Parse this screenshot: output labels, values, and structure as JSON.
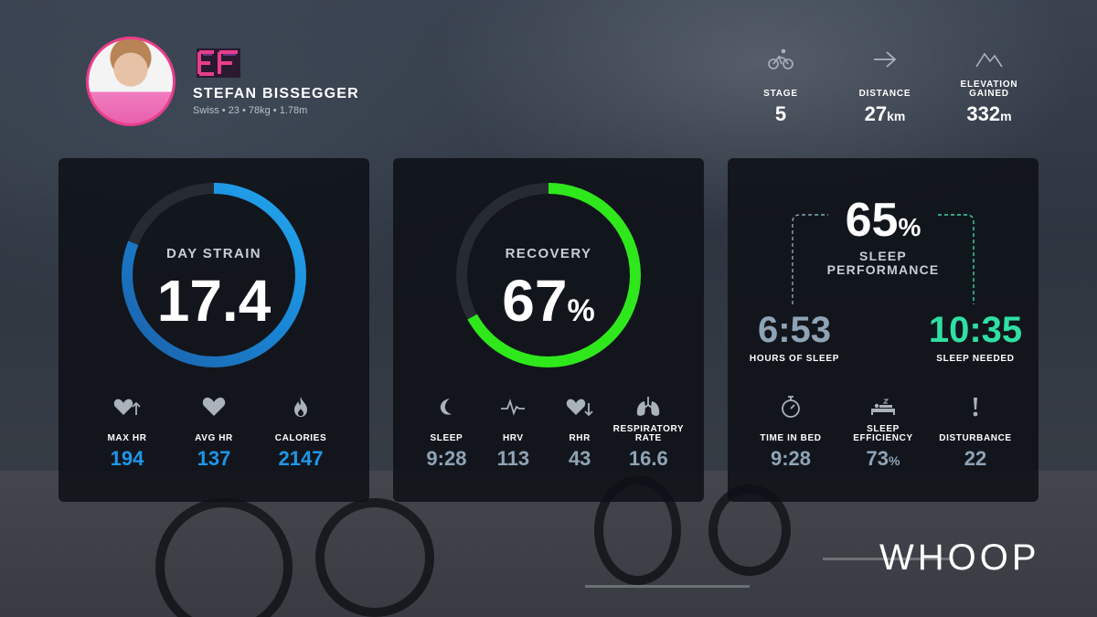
{
  "athlete": {
    "name": "STEFAN BISSEGGER",
    "info": "Swiss • 23 • 78kg • 1.78m"
  },
  "stage_stats": [
    {
      "icon": "cyclist-icon",
      "label": "STAGE",
      "value": "5",
      "unit": ""
    },
    {
      "icon": "arrow-right-icon",
      "label": "DISTANCE",
      "value": "27",
      "unit": "km"
    },
    {
      "icon": "mountain-icon",
      "label": "ELEVATION GAINED",
      "value": "332",
      "unit": "m"
    }
  ],
  "strain": {
    "title": "DAY STRAIN",
    "value": "17.4",
    "fraction": 0.81,
    "stats": [
      {
        "icon": "heart-up-icon",
        "label": "MAX HR",
        "value": "194"
      },
      {
        "icon": "heart-icon",
        "label": "AVG HR",
        "value": "137"
      },
      {
        "icon": "flame-icon",
        "label": "CALORIES",
        "value": "2147"
      }
    ]
  },
  "recovery": {
    "title": "RECOVERY",
    "value": "67",
    "unit": "%",
    "fraction": 0.67,
    "stats": [
      {
        "icon": "moon-icon",
        "label": "SLEEP",
        "value": "9:28"
      },
      {
        "icon": "hrv-icon",
        "label": "HRV",
        "value": "113"
      },
      {
        "icon": "heart-down-icon",
        "label": "RHR",
        "value": "43"
      },
      {
        "icon": "lungs-icon",
        "label": "RESPIRATORY RATE",
        "value": "16.6"
      }
    ]
  },
  "sleep": {
    "performance_value": "65",
    "performance_unit": "%",
    "performance_label": "SLEEP PERFORMANCE",
    "hours_value": "6:53",
    "hours_label": "HOURS OF SLEEP",
    "needed_value": "10:35",
    "needed_label": "SLEEP NEEDED",
    "stats": [
      {
        "icon": "stopwatch-icon",
        "label": "TIME IN BED",
        "value": "9:28",
        "unit": ""
      },
      {
        "icon": "bed-icon",
        "label": "SLEEP EFFICIENCY",
        "value": "73",
        "unit": "%"
      },
      {
        "icon": "exclamation-icon",
        "label": "DISTURBANCE",
        "value": "22",
        "unit": ""
      }
    ]
  },
  "brand": "WHOOP",
  "colors": {
    "strain_blue": "#1f96e8",
    "recovery_green": "#2ee81c",
    "sleep_grey": "#8fa3b6",
    "sleep_needed_green": "#2fe0a2",
    "profile_pink": "#e83e8c"
  }
}
